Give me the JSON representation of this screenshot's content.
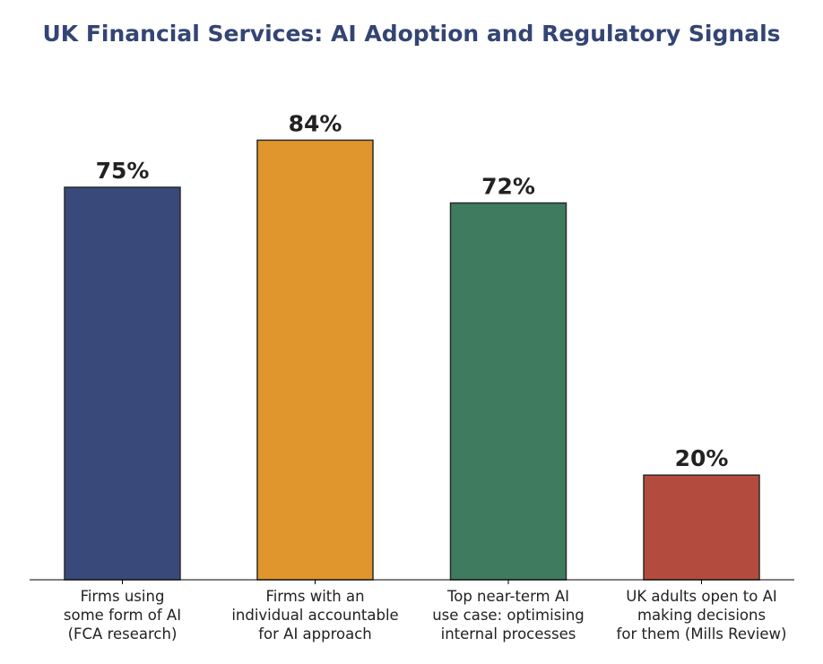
{
  "chart_data": {
    "type": "bar",
    "title": "UK Financial Services: AI Adoption and Regulatory Signals",
    "categories": [
      [
        "Firms using",
        "some form of AI",
        "(FCA research)"
      ],
      [
        "Firms with an",
        "individual accountable",
        "for AI approach"
      ],
      [
        "Top near-term AI",
        "use case: optimising",
        "internal processes"
      ],
      [
        "UK adults open to AI",
        "making decisions",
        "for them (Mills Review)"
      ]
    ],
    "values": [
      75,
      84,
      72,
      20
    ],
    "value_labels": [
      "75%",
      "84%",
      "72%",
      "20%"
    ],
    "unit": "%",
    "ylim": [
      0,
      100
    ],
    "grid": false,
    "colors": [
      "#394a7a",
      "#e0962d",
      "#3e7b5f",
      "#b34c3e"
    ],
    "title_color": "#344574",
    "text_color": "#222222",
    "edge_color": "#2a2a2a"
  }
}
